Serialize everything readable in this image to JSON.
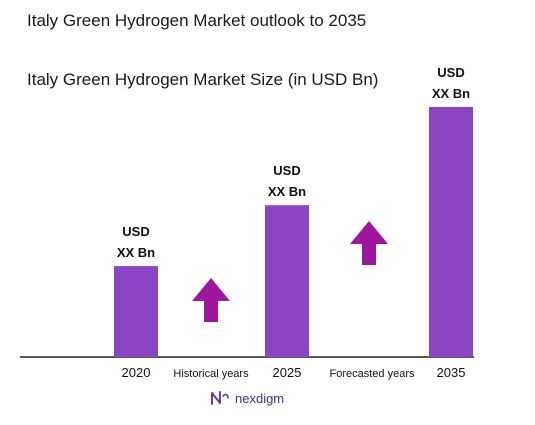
{
  "title": "Italy Green Hydrogen Market outlook to 2035",
  "subtitle": "Italy Green Hydrogen Market Size (in USD Bn)",
  "brand": "nexdigm",
  "colors": {
    "bar": "#8a44c4",
    "arrow": "#a0159e",
    "axis": "#222222"
  },
  "chart_data": {
    "type": "bar",
    "categories": [
      "2020",
      "2025",
      "2035"
    ],
    "values": [
      1,
      1.67,
      2.75
    ],
    "value_labels": [
      [
        "USD",
        "XX Bn"
      ],
      [
        "USD",
        "XX Bn"
      ],
      [
        "USD",
        "XX Bn"
      ]
    ],
    "between_labels": [
      "Historical years",
      "Forecasted years"
    ],
    "ylim": [
      0,
      2.8
    ],
    "xlabel": "",
    "ylabel": "",
    "grid": false,
    "legend": "none",
    "growth_arrows": 2
  }
}
